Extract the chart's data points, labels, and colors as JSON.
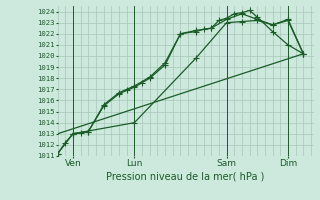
{
  "xlabel": "Pression niveau de la mer( hPa )",
  "bg_color": "#cde8dc",
  "grid_color": "#a8c8b8",
  "line_color": "#1a5c28",
  "dark_line_color": "#0d3d1a",
  "ylim": [
    1011,
    1024.5
  ],
  "xlim": [
    0,
    100
  ],
  "xtick_positions": [
    6,
    30,
    66,
    90
  ],
  "xtick_labels": [
    "Ven",
    "Lun",
    "Sam",
    "Dim"
  ],
  "ytick_positions": [
    1011,
    1012,
    1013,
    1014,
    1015,
    1016,
    1017,
    1018,
    1019,
    1020,
    1021,
    1022,
    1023,
    1024
  ],
  "vline_positions": [
    6,
    30,
    66,
    90
  ],
  "line1_x": [
    0,
    3,
    6,
    9,
    12,
    18,
    24,
    27,
    30,
    33,
    36,
    42,
    48,
    54,
    57,
    60,
    63,
    66,
    69,
    72,
    75,
    78,
    84,
    90,
    96
  ],
  "line1_y": [
    1011.2,
    1012.2,
    1013.0,
    1013.1,
    1013.2,
    1015.5,
    1016.6,
    1016.9,
    1017.2,
    1017.6,
    1018.0,
    1019.2,
    1022.0,
    1022.2,
    1022.4,
    1022.5,
    1023.2,
    1023.4,
    1023.8,
    1023.9,
    1024.1,
    1023.5,
    1022.2,
    1021.0,
    1020.2
  ],
  "line2_x": [
    0,
    6,
    12,
    18,
    24,
    30,
    36,
    42,
    48,
    54,
    60,
    66,
    72,
    78,
    84,
    90,
    96
  ],
  "line2_y": [
    1011.2,
    1013.0,
    1013.2,
    1015.6,
    1016.7,
    1017.3,
    1018.1,
    1019.4,
    1022.0,
    1022.3,
    1022.5,
    1023.3,
    1023.8,
    1023.3,
    1022.8,
    1023.2,
    1020.2
  ],
  "line3_x": [
    6,
    30,
    54,
    66,
    72,
    78,
    84,
    90,
    96
  ],
  "line3_y": [
    1013.0,
    1014.0,
    1019.8,
    1023.0,
    1023.1,
    1023.2,
    1022.8,
    1023.3,
    1020.2
  ],
  "line4_x": [
    0,
    96
  ],
  "line4_y": [
    1013.0,
    1020.2
  ]
}
